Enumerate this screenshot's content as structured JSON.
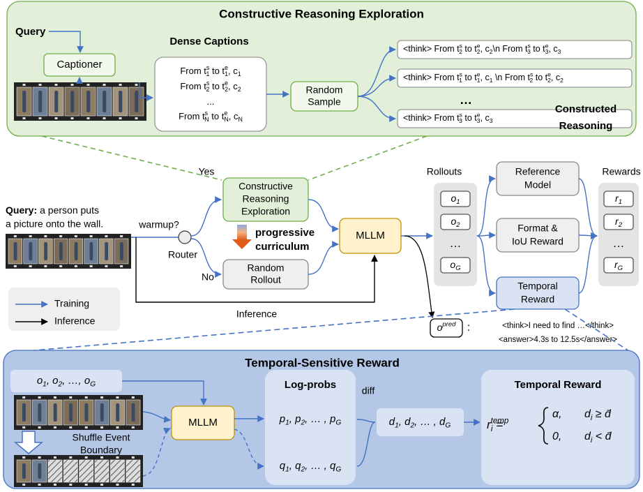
{
  "top": {
    "title": "Constructive Reasoning Exploration",
    "query": "Query",
    "captioner": "Captioner",
    "dense_captions": "Dense Captions",
    "captions": [
      [
        "From t",
        {
          "sup": "s",
          "sub": "1"
        },
        " to t",
        {
          "sup": "e",
          "sub": "1"
        },
        ", c",
        {
          "sub": "1"
        }
      ],
      [
        "From t",
        {
          "sup": "s",
          "sub": "2"
        },
        " to t",
        {
          "sup": "e",
          "sub": "2"
        },
        ", c",
        {
          "sub": "2"
        }
      ],
      [
        "..."
      ],
      [
        "From t",
        {
          "sup": "s",
          "sub": "N"
        },
        " to t",
        {
          "sup": "e",
          "sub": "N"
        },
        ", c",
        {
          "sub": "N"
        }
      ]
    ],
    "random_sample": [
      "Random",
      "Sample"
    ],
    "outputs": [
      [
        "<think> From t",
        {
          "sup": "s",
          "sub": "2"
        },
        " to t",
        {
          "sup": "e",
          "sub": "2"
        },
        ", c",
        {
          "sub": "2"
        },
        "\\n From t",
        {
          "sup": "s",
          "sub": "3"
        },
        " to t",
        {
          "sup": "e",
          "sub": "3"
        },
        ", c",
        {
          "sub": "3"
        }
      ],
      [
        "<think> From t",
        {
          "sup": "s",
          "sub": "1"
        },
        " to t",
        {
          "sup": "e",
          "sub": "1"
        },
        ", c",
        {
          "sub": "1"
        },
        " \\n From t",
        {
          "sup": "s",
          "sub": "2"
        },
        " to t",
        {
          "sup": "e",
          "sub": "2"
        },
        ", c",
        {
          "sub": "2"
        }
      ],
      [
        "<think> From t",
        {
          "sup": "s",
          "sub": "3"
        },
        " to t",
        {
          "sup": "e",
          "sub": "3"
        },
        ", c",
        {
          "sub": "3"
        }
      ]
    ],
    "outputs_ellipsis": "…",
    "constructed_reasoning": [
      "Constructed",
      "Reasoning"
    ]
  },
  "middle": {
    "query_label": "Query:",
    "query_text": [
      "a person puts",
      "a picture onto the wall."
    ],
    "warmup": "warmup?",
    "router": "Router",
    "yes": "Yes",
    "no": "No",
    "constructive": [
      "Constructive",
      "Reasoning",
      "Exploration"
    ],
    "progressive": [
      "progressive",
      "curriculum"
    ],
    "random_rollout": [
      "Random",
      "Rollout"
    ],
    "mllm": "MLLM",
    "inference": "Inference",
    "legend": [
      "Training",
      "Inference"
    ],
    "rollouts_title": "Rollouts",
    "rollouts": [
      [
        "o",
        {
          "sub": "1"
        }
      ],
      [
        "o",
        {
          "sub": "2"
        }
      ],
      [
        "…"
      ],
      [
        "o",
        {
          "sub": "G"
        }
      ]
    ],
    "reference_model": [
      "Reference",
      "Model"
    ],
    "format_reward": [
      "Format &",
      "IoU Reward"
    ],
    "temporal_reward": [
      "Temporal",
      "Reward"
    ],
    "rewards_title": "Rewards",
    "rewards": [
      [
        "r",
        {
          "sub": "1"
        }
      ],
      [
        "r",
        {
          "sub": "2"
        }
      ],
      [
        "…"
      ],
      [
        "r",
        {
          "sub": "G"
        }
      ]
    ],
    "pred": [
      "o",
      {
        "sup": "pred"
      }
    ],
    "pred_colon": ":",
    "pred_output": [
      "<think>I need to find …</think>",
      "<answer>4.3s to 12.5s</answer>"
    ]
  },
  "bottom": {
    "title": "Temporal-Sensitive Reward",
    "outputs": [
      "o",
      {
        "sub": "1"
      },
      ", o",
      {
        "sub": "2"
      },
      ", …, o",
      {
        "sub": "G"
      }
    ],
    "shuffle": [
      "Shuffle Event",
      "Boundary"
    ],
    "mllm": "MLLM",
    "logprobs_title": "Log-probs",
    "p": [
      "p",
      {
        "sub": "1"
      },
      ", p",
      {
        "sub": "2"
      },
      ", … , p",
      {
        "sub": "G"
      }
    ],
    "q": [
      "q",
      {
        "sub": "1"
      },
      ", q",
      {
        "sub": "2"
      },
      ", … , q",
      {
        "sub": "G"
      }
    ],
    "diff": "diff",
    "d": [
      "d",
      {
        "sub": "1"
      },
      ", d",
      {
        "sub": "2"
      },
      ", … , d",
      {
        "sub": "G"
      }
    ],
    "reward_title": "Temporal Reward",
    "formula_lhs": [
      "r",
      {
        "sub": "i",
        "sup": "temp"
      },
      " ="
    ],
    "cases": [
      [
        "α,"
      ],
      [
        "d",
        {
          "sub": "i"
        },
        " ≥ d̄"
      ],
      [
        "0,"
      ],
      [
        "d",
        {
          "sub": "i"
        },
        " < d̄"
      ]
    ]
  }
}
